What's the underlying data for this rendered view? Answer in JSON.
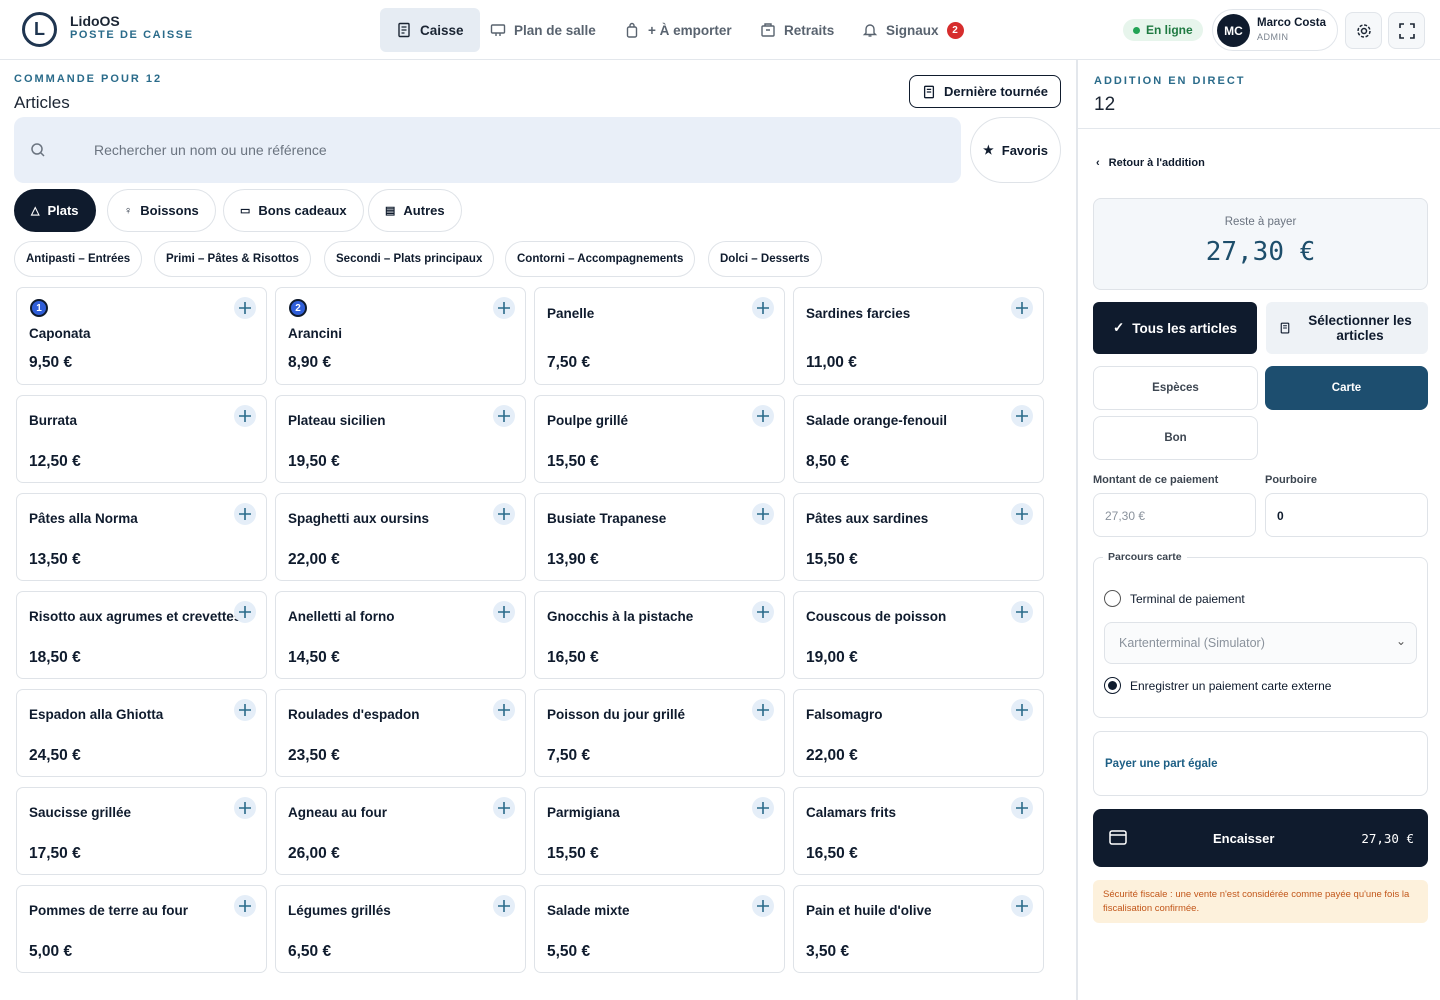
{
  "header": {
    "logo": "L",
    "brand": "LidoOS",
    "subtitle": "POSTE DE CAISSE",
    "nav": [
      {
        "label": "Caisse"
      },
      {
        "label": "Plan de salle"
      },
      {
        "label": "+ À emporter"
      },
      {
        "label": "Retraits"
      },
      {
        "label": "Signaux",
        "badge": "2"
      }
    ],
    "status": "En ligne",
    "user": {
      "initials": "MC",
      "name": "Marco Costa",
      "role": "ADMIN"
    }
  },
  "order": {
    "eyebrow": "COMMANDE POUR 12",
    "title": "Articles",
    "last_round": "Dernière tournée",
    "search_placeholder": "Rechercher un nom ou une référence",
    "favorites": "Favoris",
    "tabs": [
      "Plats",
      "Boissons",
      "Bons cadeaux",
      "Autres"
    ],
    "subcategories": [
      "Antipasti – Entrées",
      "Primi – Pâtes & Risottos",
      "Secondi – Plats principaux",
      "Contorni – Accompagnements",
      "Dolci – Desserts"
    ],
    "products": [
      {
        "badge": "1",
        "name": "Caponata",
        "price": "9,50 €"
      },
      {
        "badge": "2",
        "name": "Arancini",
        "price": "8,90 €"
      },
      {
        "name": "Panelle",
        "price": "7,50 €"
      },
      {
        "name": "Sardines farcies",
        "price": "11,00 €"
      },
      {
        "name": "Burrata",
        "price": "12,50 €"
      },
      {
        "name": "Plateau sicilien",
        "price": "19,50 €"
      },
      {
        "name": "Poulpe grillé",
        "price": "15,50 €"
      },
      {
        "name": "Salade orange-fenouil",
        "price": "8,50 €"
      },
      {
        "name": "Pâtes alla Norma",
        "price": "13,50 €"
      },
      {
        "name": "Spaghetti aux oursins",
        "price": "22,00 €"
      },
      {
        "name": "Busiate Trapanese",
        "price": "13,90 €"
      },
      {
        "name": "Pâtes aux sardines",
        "price": "15,50 €"
      },
      {
        "name": "Risotto aux agrumes et crevettes",
        "price": "18,50 €"
      },
      {
        "name": "Anelletti al forno",
        "price": "14,50 €"
      },
      {
        "name": "Gnocchis à la pistache",
        "price": "16,50 €"
      },
      {
        "name": "Couscous de poisson",
        "price": "19,00 €"
      },
      {
        "name": "Espadon alla Ghiotta",
        "price": "24,50 €"
      },
      {
        "name": "Roulades d'espadon",
        "price": "23,50 €"
      },
      {
        "name": "Poisson du jour grillé",
        "price": "7,50 €"
      },
      {
        "name": "Falsomagro",
        "price": "22,00 €"
      },
      {
        "name": "Saucisse grillée",
        "price": "17,50 €"
      },
      {
        "name": "Agneau au four",
        "price": "26,00 €"
      },
      {
        "name": "Parmigiana",
        "price": "15,50 €"
      },
      {
        "name": "Calamars frits",
        "price": "16,50 €"
      },
      {
        "name": "Pommes de terre au four",
        "price": "5,00 €"
      },
      {
        "name": "Légumes grillés",
        "price": "6,50 €"
      },
      {
        "name": "Salade mixte",
        "price": "5,50 €"
      },
      {
        "name": "Pain et huile d'olive",
        "price": "3,50 €"
      }
    ]
  },
  "bill": {
    "eyebrow": "ADDITION EN DIRECT",
    "table": "12",
    "back": "Retour à l'addition",
    "remaining_label": "Reste à payer",
    "remaining": "27,30 €",
    "all_items": "Tous les articles",
    "select_items": "Sélectionner les articles",
    "methods": [
      "Espèces",
      "Carte",
      "Bon"
    ],
    "amount_label": "Montant de ce paiement",
    "amount_placeholder": "27,30 €",
    "tip_label": "Pourboire",
    "tip": "0",
    "card_flow": {
      "legend": "Parcours carte",
      "terminal": "Terminal de paiement",
      "terminal_select": "Kartenterminal (Simulator)",
      "external": "Enregistrer un paiement carte externe"
    },
    "equal_split": "Payer une part égale",
    "checkout": "Encaisser",
    "checkout_amount": "27,30 €",
    "notice": "Sécurité fiscale : une vente n'est considérée comme payée qu'une fois la fiscalisation confirmée."
  }
}
